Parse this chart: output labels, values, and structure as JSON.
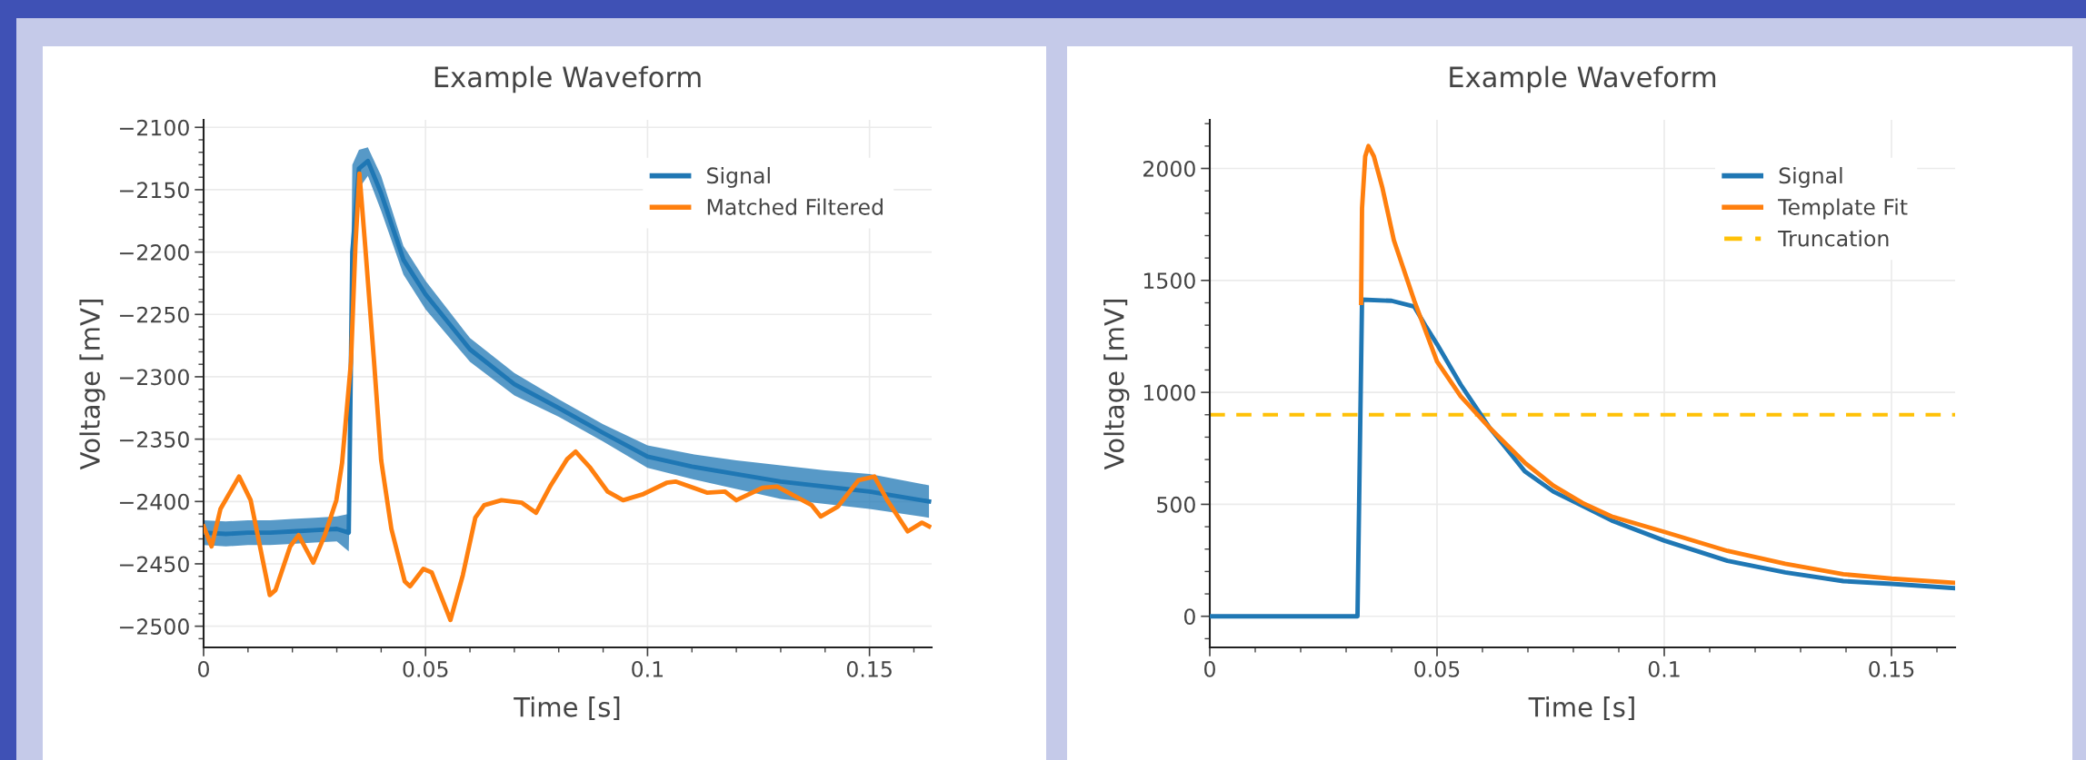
{
  "chart_data": [
    {
      "type": "line",
      "title": "Example Waveform",
      "xlabel": "Time [s]",
      "ylabel": "Voltage [mV]",
      "xlim": [
        0,
        0.164
      ],
      "ylim": [
        -2517,
        -2094
      ],
      "xticks": [
        0,
        0.05,
        0.1,
        0.15
      ],
      "yticks": [
        -2500,
        -2450,
        -2400,
        -2350,
        -2300,
        -2250,
        -2200,
        -2150,
        -2100
      ],
      "grid": true,
      "legend": "top right",
      "line_style": "solid",
      "marker": "none",
      "series": [
        {
          "name": "Signal",
          "color": "#1f77b4",
          "x": [
            0,
            0.005,
            0.01,
            0.015,
            0.02,
            0.025,
            0.03,
            0.0327,
            0.0335,
            0.035,
            0.037,
            0.04,
            0.045,
            0.05,
            0.06,
            0.07,
            0.08,
            0.09,
            0.1,
            0.11,
            0.12,
            0.13,
            0.14,
            0.15,
            0.1634
          ],
          "values": [
            -2425,
            -2426,
            -2425,
            -2425,
            -2424,
            -2423,
            -2422,
            -2425,
            -2200,
            -2133,
            -2127,
            -2153,
            -2206,
            -2234,
            -2278,
            -2306,
            -2325,
            -2345,
            -2364,
            -2372,
            -2378,
            -2384,
            -2388,
            -2392,
            -2400
          ],
          "lower": [
            -2435,
            -2436,
            -2435,
            -2435,
            -2434,
            -2433,
            -2432,
            -2440,
            -2290,
            -2149,
            -2139,
            -2167,
            -2218,
            -2246,
            -2288,
            -2315,
            -2332,
            -2352,
            -2373,
            -2382,
            -2390,
            -2398,
            -2402,
            -2406,
            -2413
          ],
          "upper": [
            -2415,
            -2416,
            -2415,
            -2415,
            -2414,
            -2413,
            -2412,
            -2410,
            -2130,
            -2118,
            -2116,
            -2139,
            -2195,
            -2223,
            -2269,
            -2297,
            -2318,
            -2338,
            -2355,
            -2362,
            -2367,
            -2371,
            -2375,
            -2378,
            -2387
          ]
        },
        {
          "name": "Matched Filtered",
          "color": "#ff7f0e",
          "x": [
            0,
            0.0018,
            0.0038,
            0.008,
            0.0106,
            0.014,
            0.0149,
            0.0162,
            0.0195,
            0.0214,
            0.0247,
            0.0273,
            0.0299,
            0.0312,
            0.0332,
            0.0342,
            0.0351,
            0.0364,
            0.0384,
            0.04,
            0.0423,
            0.0453,
            0.0465,
            0.0495,
            0.0514,
            0.0556,
            0.0584,
            0.0612,
            0.0632,
            0.0671,
            0.0717,
            0.0749,
            0.0782,
            0.0819,
            0.0838,
            0.0871,
            0.091,
            0.0945,
            0.0991,
            0.1043,
            0.1063,
            0.1135,
            0.1174,
            0.12,
            0.1259,
            0.1292,
            0.137,
            0.139,
            0.1429,
            0.1475,
            0.1511,
            0.154,
            0.1586,
            0.1618,
            0.1634
          ],
          "values": [
            -2420,
            -2436,
            -2406,
            -2380,
            -2399,
            -2459,
            -2475,
            -2471,
            -2436,
            -2427,
            -2449,
            -2427,
            -2399,
            -2369,
            -2288,
            -2195,
            -2137,
            -2195,
            -2288,
            -2367,
            -2422,
            -2464,
            -2468,
            -2454,
            -2457,
            -2495,
            -2459,
            -2413,
            -2403,
            -2399,
            -2401,
            -2409,
            -2387,
            -2366,
            -2360,
            -2373,
            -2392,
            -2399,
            -2394,
            -2385,
            -2384,
            -2393,
            -2392,
            -2399,
            -2389,
            -2388,
            -2403,
            -2412,
            -2404,
            -2383,
            -2380,
            -2399,
            -2424,
            -2417,
            -2420
          ]
        }
      ]
    },
    {
      "type": "line",
      "title": "Example Waveform",
      "xlabel": "Time [s]",
      "ylabel": "Voltage [mV]",
      "xlim": [
        0,
        0.164
      ],
      "ylim": [
        -139,
        2217
      ],
      "xticks": [
        0,
        0.05,
        0.1,
        0.15
      ],
      "yticks": [
        0,
        500,
        1000,
        1500,
        2000
      ],
      "grid": true,
      "legend": "top right",
      "line_style": "solid",
      "marker": "none",
      "series": [
        {
          "name": "Signal",
          "color": "#1f77b4",
          "x": [
            0,
            0.01,
            0.02,
            0.03,
            0.0325,
            0.0335,
            0.04,
            0.045,
            0.0476,
            0.05,
            0.0552,
            0.0616,
            0.0693,
            0.0756,
            0.082,
            0.0884,
            0.1,
            0.1139,
            0.1266,
            0.1394,
            0.15,
            0.1636
          ],
          "values": [
            0,
            0,
            0,
            0,
            0,
            1414,
            1409,
            1383,
            1293,
            1215,
            1035,
            841,
            648,
            557,
            493,
            428,
            338,
            248,
            196,
            157,
            145,
            126
          ]
        },
        {
          "name": "Template Fit",
          "color": "#ff7f0e",
          "x": [
            0.0333,
            0.0335,
            0.0342,
            0.0349,
            0.0361,
            0.038,
            0.0405,
            0.045,
            0.05,
            0.0552,
            0.0616,
            0.0693,
            0.0756,
            0.082,
            0.0884,
            0.1,
            0.1139,
            0.1266,
            0.1394,
            0.15,
            0.1636
          ],
          "values": [
            1400,
            1822,
            2054,
            2100,
            2054,
            1912,
            1680,
            1409,
            1138,
            983,
            841,
            686,
            583,
            506,
            446,
            377,
            292,
            235,
            188,
            168,
            150
          ]
        }
      ],
      "ref_lines": [
        {
          "axis": "y",
          "value": 900,
          "label": "Truncation",
          "color": "#ffc107",
          "line_style": "dashed"
        }
      ]
    }
  ]
}
